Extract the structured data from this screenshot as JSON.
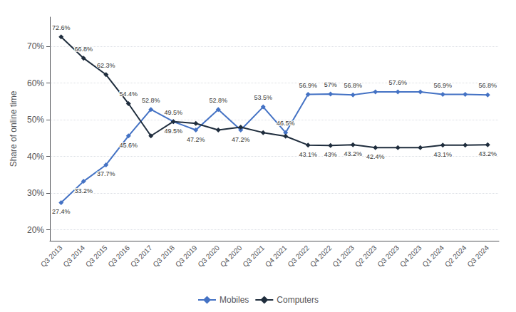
{
  "chart_data": {
    "type": "line",
    "ylabel": "Share of online time",
    "categories": [
      "Q3 2013",
      "Q3 2014",
      "Q3 2015",
      "Q3 2016",
      "Q3 2017",
      "Q3 2018",
      "Q3 2019",
      "Q3 2020",
      "Q4 2020",
      "Q3 2021",
      "Q4 2021",
      "Q3 2022",
      "Q4 2022",
      "Q1 2023",
      "Q2 2023",
      "Q3 2023",
      "Q4 2023",
      "Q1 2024",
      "Q2 2024",
      "Q3 2024"
    ],
    "series": [
      {
        "name": "Mobiles",
        "color": "#4472c4",
        "marker": "diamond",
        "values": [
          27.4,
          33.2,
          37.7,
          45.6,
          52.8,
          49.5,
          47.2,
          52.8,
          47.2,
          53.5,
          46.5,
          56.9,
          57.0,
          56.8,
          57.6,
          57.6,
          57.6,
          56.9,
          56.9,
          56.8
        ],
        "value_labels": [
          "27.4%",
          "33.2%",
          "37.7%",
          "45.6%",
          "52.8%",
          "49.5%",
          "47.2%",
          "52.8%",
          "47.2%",
          "53.5%",
          "46.5%",
          "56.9%",
          "57%",
          "56.8%",
          null,
          "57.6%",
          null,
          "56.9%",
          null,
          "56.8%"
        ]
      },
      {
        "name": "Computers",
        "color": "#1f2d3d",
        "marker": "diamond",
        "values": [
          72.6,
          66.8,
          62.3,
          54.4,
          45.6,
          49.5,
          49.0,
          47.2,
          48.0,
          46.5,
          45.5,
          43.1,
          43.0,
          43.2,
          42.4,
          42.4,
          42.4,
          43.1,
          43.1,
          43.2
        ],
        "value_labels": [
          "72.6%",
          "66.8%",
          "62.3%",
          "54.4%",
          null,
          "49.5%",
          null,
          null,
          null,
          null,
          null,
          "43.1%",
          "43%",
          "43.2%",
          "42.4%",
          null,
          null,
          "43.1%",
          null,
          "43.2%"
        ]
      }
    ],
    "ylim": [
      17,
      78
    ],
    "yticks": [
      {
        "value": 20,
        "label": "20%"
      },
      {
        "value": 30,
        "label": "30%"
      },
      {
        "value": 40,
        "label": "40%"
      },
      {
        "value": 50,
        "label": "50%"
      },
      {
        "value": 60,
        "label": "60%"
      },
      {
        "value": 70,
        "label": "70%"
      }
    ],
    "grid": true,
    "legend": "bottom",
    "data_labels": true
  }
}
